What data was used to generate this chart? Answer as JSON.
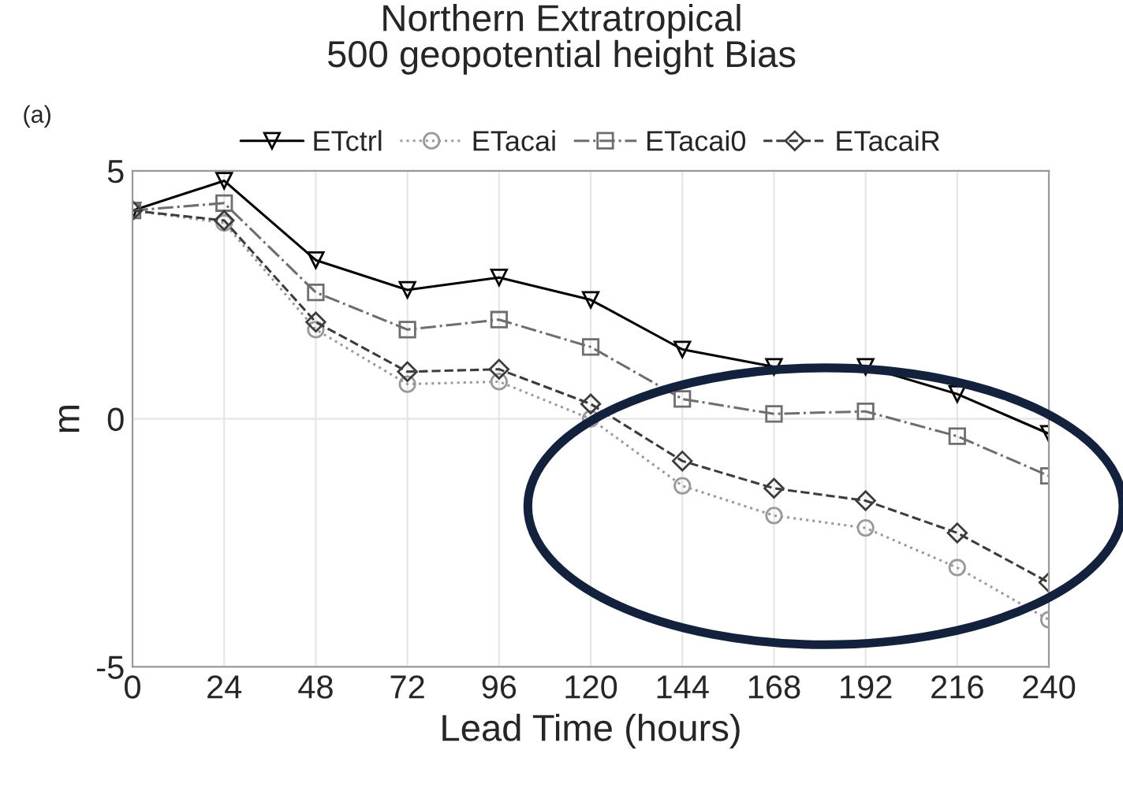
{
  "chart_data": {
    "type": "line",
    "title": "Northern Extratropical\n500 geopotential height Bias",
    "xlabel": "Lead Time (hours)",
    "ylabel": "m",
    "annotations": [
      "(a)"
    ],
    "x": [
      0,
      24,
      48,
      72,
      96,
      120,
      144,
      168,
      192,
      216,
      240
    ],
    "xlim": [
      0,
      240
    ],
    "xticks": [
      0,
      24,
      48,
      72,
      96,
      120,
      144,
      168,
      192,
      216,
      240
    ],
    "ylim": [
      -5,
      5
    ],
    "yticks": [
      -5,
      0,
      5
    ],
    "grid": true,
    "legend": "top",
    "series": [
      {
        "name": "ETctrl",
        "color": "#000000",
        "marker": "triangle",
        "line_style": "solid",
        "values": [
          4.2,
          4.8,
          3.2,
          2.6,
          2.85,
          2.4,
          1.4,
          1.05,
          1.05,
          0.5,
          -0.3
        ]
      },
      {
        "name": "ETacai",
        "color": "#9a9a9a",
        "marker": "circle",
        "line_style": "dotted",
        "values": [
          4.2,
          3.95,
          1.8,
          0.7,
          0.75,
          0.0,
          -1.35,
          -1.95,
          -2.2,
          -3.0,
          -4.05
        ]
      },
      {
        "name": "ETacai0",
        "color": "#6e6e6e",
        "marker": "square",
        "line_style": "dashdot",
        "values": [
          4.2,
          4.35,
          2.55,
          1.8,
          2.0,
          1.45,
          0.4,
          0.1,
          0.15,
          -0.35,
          -1.15
        ]
      },
      {
        "name": "ETacaiR",
        "color": "#3c3c3c",
        "marker": "diamond",
        "line_style": "dashed",
        "values": [
          4.2,
          4.0,
          1.95,
          0.95,
          1.0,
          0.3,
          -0.85,
          -1.4,
          -1.65,
          -2.3,
          -3.3
        ]
      }
    ]
  }
}
